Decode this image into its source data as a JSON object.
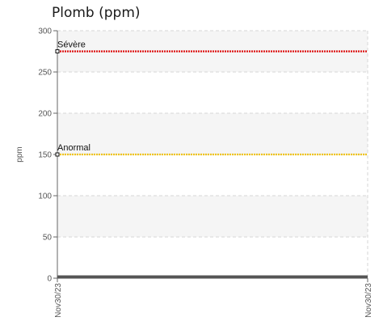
{
  "chart_data": {
    "type": "line",
    "title": "Plomb (ppm)",
    "ylabel": "ppm",
    "xlabel": "",
    "ylim": [
      0,
      300
    ],
    "yticks": [
      0,
      50,
      100,
      150,
      200,
      250,
      300
    ],
    "categories": [
      "Nov30/23",
      "Nov30/23"
    ],
    "series": [
      {
        "values": [
          0,
          0
        ],
        "color": "#555555"
      }
    ],
    "reference_lines": [
      {
        "name": "Sévère",
        "value": 275,
        "color": "#dd1111"
      },
      {
        "name": "Anormal",
        "value": 150,
        "color": "#f0c419"
      }
    ],
    "grid": true,
    "banding": true
  }
}
